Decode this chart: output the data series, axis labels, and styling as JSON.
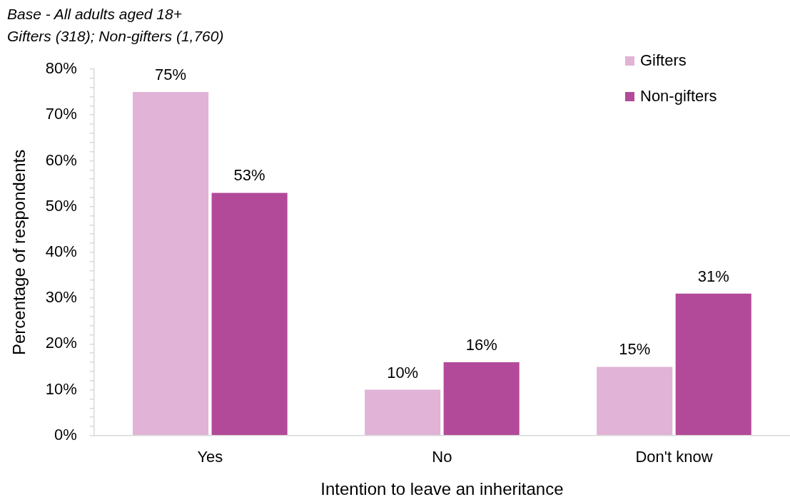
{
  "chart_data": {
    "type": "bar",
    "annotations": [
      "Base - All adults aged 18+",
      "Gifters (318); Non-gifters (1,760)"
    ],
    "xlabel": "Intention to leave an inheritance",
    "ylabel": "Percentage of respondents",
    "categories": [
      "Yes",
      "No",
      "Don't know"
    ],
    "series": [
      {
        "name": "Gifters",
        "color": "#e1b3d6",
        "values": [
          75,
          10,
          15
        ],
        "value_labels": [
          "75%",
          "10%",
          "15%"
        ]
      },
      {
        "name": "Non-gifters",
        "color": "#b24a99",
        "values": [
          53,
          16,
          31
        ],
        "value_labels": [
          "53%",
          "16%",
          "31%"
        ]
      }
    ],
    "ylim": [
      0,
      80
    ],
    "yticks": [
      {
        "value": 0,
        "label": "0%"
      },
      {
        "value": 2,
        "label": null
      },
      {
        "value": 4,
        "label": null
      },
      {
        "value": 6,
        "label": null
      },
      {
        "value": 8,
        "label": null
      },
      {
        "value": 10,
        "label": "10%"
      },
      {
        "value": 12,
        "label": null
      },
      {
        "value": 14,
        "label": null
      },
      {
        "value": 16,
        "label": null
      },
      {
        "value": 18,
        "label": null
      },
      {
        "value": 20,
        "label": "20%"
      },
      {
        "value": 22,
        "label": null
      },
      {
        "value": 24,
        "label": null
      },
      {
        "value": 26,
        "label": null
      },
      {
        "value": 28,
        "label": null
      },
      {
        "value": 30,
        "label": "30%"
      },
      {
        "value": 32,
        "label": null
      },
      {
        "value": 34,
        "label": null
      },
      {
        "value": 36,
        "label": null
      },
      {
        "value": 38,
        "label": null
      },
      {
        "value": 40,
        "label": "40%"
      },
      {
        "value": 42,
        "label": null
      },
      {
        "value": 44,
        "label": null
      },
      {
        "value": 46,
        "label": null
      },
      {
        "value": 48,
        "label": null
      },
      {
        "value": 50,
        "label": "50%"
      },
      {
        "value": 52,
        "label": null
      },
      {
        "value": 54,
        "label": null
      },
      {
        "value": 56,
        "label": null
      },
      {
        "value": 58,
        "label": null
      },
      {
        "value": 60,
        "label": "60%"
      },
      {
        "value": 62,
        "label": null
      },
      {
        "value": 64,
        "label": null
      },
      {
        "value": 66,
        "label": null
      },
      {
        "value": 68,
        "label": null
      },
      {
        "value": 70,
        "label": "70%"
      },
      {
        "value": 72,
        "label": null
      },
      {
        "value": 74,
        "label": null
      },
      {
        "value": 76,
        "label": null
      },
      {
        "value": 78,
        "label": null
      },
      {
        "value": 80,
        "label": "80%"
      }
    ],
    "grid": false,
    "legend": "top right"
  }
}
